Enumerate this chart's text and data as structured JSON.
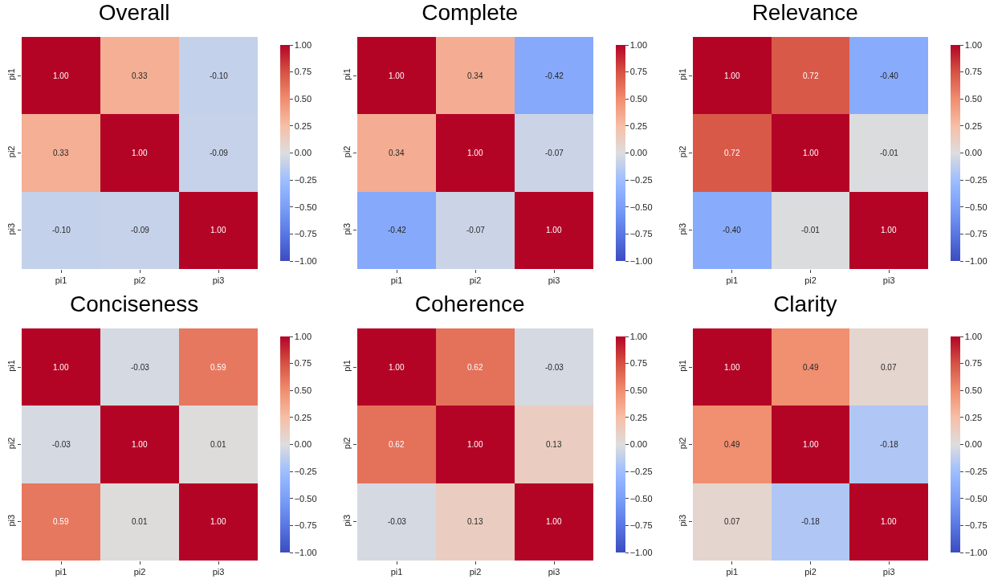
{
  "chart_data": [
    {
      "type": "heatmap",
      "title": "Overall",
      "categories": [
        "pi1",
        "pi2",
        "pi3"
      ],
      "y_categories": [
        "pi1",
        "pi2",
        "pi3"
      ],
      "cells": [
        [
          1,
          0.33,
          -0.1
        ],
        [
          0.33,
          1,
          -0.09
        ],
        [
          -0.1,
          -0.09,
          1
        ]
      ],
      "cell_labels": [
        [
          "1.00",
          "0.33",
          "-0.10"
        ],
        [
          "0.33",
          "1.00",
          "-0.09"
        ],
        [
          "-0.10",
          "-0.09",
          "1.00"
        ]
      ],
      "clim": [
        -1,
        1
      ],
      "cticks": [
        {
          "value": -1,
          "label": "−1.00"
        },
        {
          "value": -0.75,
          "label": "−0.75"
        },
        {
          "value": -0.5,
          "label": "−0.50"
        },
        {
          "value": -0.25,
          "label": "−0.25"
        },
        {
          "value": 0,
          "label": "0.00"
        },
        {
          "value": 0.25,
          "label": "0.25"
        },
        {
          "value": 0.5,
          "label": "0.50"
        },
        {
          "value": 0.75,
          "label": "0.75"
        },
        {
          "value": 1,
          "label": "1.00"
        }
      ]
    },
    {
      "type": "heatmap",
      "title": "Complete",
      "categories": [
        "pi1",
        "pi2",
        "pi3"
      ],
      "y_categories": [
        "pi1",
        "pi2",
        "pi3"
      ],
      "cells": [
        [
          1,
          0.34,
          -0.42
        ],
        [
          0.34,
          1,
          -0.07
        ],
        [
          -0.42,
          -0.07,
          1
        ]
      ],
      "cell_labels": [
        [
          "1.00",
          "0.34",
          "-0.42"
        ],
        [
          "0.34",
          "1.00",
          "-0.07"
        ],
        [
          "-0.42",
          "-0.07",
          "1.00"
        ]
      ],
      "clim": [
        -1,
        1
      ],
      "cticks": [
        {
          "value": -1,
          "label": "−1.00"
        },
        {
          "value": -0.75,
          "label": "−0.75"
        },
        {
          "value": -0.5,
          "label": "−0.50"
        },
        {
          "value": -0.25,
          "label": "−0.25"
        },
        {
          "value": 0,
          "label": "0.00"
        },
        {
          "value": 0.25,
          "label": "0.25"
        },
        {
          "value": 0.5,
          "label": "0.50"
        },
        {
          "value": 0.75,
          "label": "0.75"
        },
        {
          "value": 1,
          "label": "1.00"
        }
      ]
    },
    {
      "type": "heatmap",
      "title": "Relevance",
      "categories": [
        "pi1",
        "pi2",
        "pi3"
      ],
      "y_categories": [
        "pi1",
        "pi2",
        "pi3"
      ],
      "cells": [
        [
          1,
          0.72,
          -0.4
        ],
        [
          0.72,
          1,
          -0.01
        ],
        [
          -0.4,
          -0.01,
          1
        ]
      ],
      "cell_labels": [
        [
          "1.00",
          "0.72",
          "-0.40"
        ],
        [
          "0.72",
          "1.00",
          "-0.01"
        ],
        [
          "-0.40",
          "-0.01",
          "1.00"
        ]
      ],
      "clim": [
        -1,
        1
      ],
      "cticks": [
        {
          "value": -1,
          "label": "−1.00"
        },
        {
          "value": -0.75,
          "label": "−0.75"
        },
        {
          "value": -0.5,
          "label": "−0.50"
        },
        {
          "value": -0.25,
          "label": "−0.25"
        },
        {
          "value": 0,
          "label": "0.00"
        },
        {
          "value": 0.25,
          "label": "0.25"
        },
        {
          "value": 0.5,
          "label": "0.50"
        },
        {
          "value": 0.75,
          "label": "0.75"
        },
        {
          "value": 1,
          "label": "1.00"
        }
      ]
    },
    {
      "type": "heatmap",
      "title": "Conciseness",
      "categories": [
        "pi1",
        "pi2",
        "pi3"
      ],
      "y_categories": [
        "pi1",
        "pi2",
        "pi3"
      ],
      "cells": [
        [
          1,
          -0.03,
          0.59
        ],
        [
          -0.03,
          1,
          0.01
        ],
        [
          0.59,
          0.01,
          1
        ]
      ],
      "cell_labels": [
        [
          "1.00",
          "-0.03",
          "0.59"
        ],
        [
          "-0.03",
          "1.00",
          "0.01"
        ],
        [
          "0.59",
          "0.01",
          "1.00"
        ]
      ],
      "clim": [
        -1,
        1
      ],
      "cticks": [
        {
          "value": -1,
          "label": "−1.00"
        },
        {
          "value": -0.75,
          "label": "−0.75"
        },
        {
          "value": -0.5,
          "label": "−0.50"
        },
        {
          "value": -0.25,
          "label": "−0.25"
        },
        {
          "value": 0,
          "label": "0.00"
        },
        {
          "value": 0.25,
          "label": "0.25"
        },
        {
          "value": 0.5,
          "label": "0.50"
        },
        {
          "value": 0.75,
          "label": "0.75"
        },
        {
          "value": 1,
          "label": "1.00"
        }
      ]
    },
    {
      "type": "heatmap",
      "title": "Coherence",
      "categories": [
        "pi1",
        "pi2",
        "pi3"
      ],
      "y_categories": [
        "pi1",
        "pi2",
        "pi3"
      ],
      "cells": [
        [
          1,
          0.62,
          -0.03
        ],
        [
          0.62,
          1,
          0.13
        ],
        [
          -0.03,
          0.13,
          1
        ]
      ],
      "cell_labels": [
        [
          "1.00",
          "0.62",
          "-0.03"
        ],
        [
          "0.62",
          "1.00",
          "0.13"
        ],
        [
          "-0.03",
          "0.13",
          "1.00"
        ]
      ],
      "clim": [
        -1,
        1
      ],
      "cticks": [
        {
          "value": -1,
          "label": "−1.00"
        },
        {
          "value": -0.75,
          "label": "−0.75"
        },
        {
          "value": -0.5,
          "label": "−0.50"
        },
        {
          "value": -0.25,
          "label": "−0.25"
        },
        {
          "value": 0,
          "label": "0.00"
        },
        {
          "value": 0.25,
          "label": "0.25"
        },
        {
          "value": 0.5,
          "label": "0.50"
        },
        {
          "value": 0.75,
          "label": "0.75"
        },
        {
          "value": 1,
          "label": "1.00"
        }
      ]
    },
    {
      "type": "heatmap",
      "title": "Clarity",
      "categories": [
        "pi1",
        "pi2",
        "pi3"
      ],
      "y_categories": [
        "pi1",
        "pi2",
        "pi3"
      ],
      "cells": [
        [
          1,
          0.49,
          0.07
        ],
        [
          0.49,
          1,
          -0.18
        ],
        [
          0.07,
          -0.18,
          1
        ]
      ],
      "cell_labels": [
        [
          "1.00",
          "0.49",
          "0.07"
        ],
        [
          "0.49",
          "1.00",
          "-0.18"
        ],
        [
          "0.07",
          "-0.18",
          "1.00"
        ]
      ],
      "clim": [
        -1,
        1
      ],
      "cticks": [
        {
          "value": -1,
          "label": "−1.00"
        },
        {
          "value": -0.75,
          "label": "−0.75"
        },
        {
          "value": -0.5,
          "label": "−0.50"
        },
        {
          "value": -0.25,
          "label": "−0.25"
        },
        {
          "value": 0,
          "label": "0.00"
        },
        {
          "value": 0.25,
          "label": "0.25"
        },
        {
          "value": 0.5,
          "label": "0.50"
        },
        {
          "value": 0.75,
          "label": "0.75"
        },
        {
          "value": 1,
          "label": "1.00"
        }
      ]
    }
  ]
}
